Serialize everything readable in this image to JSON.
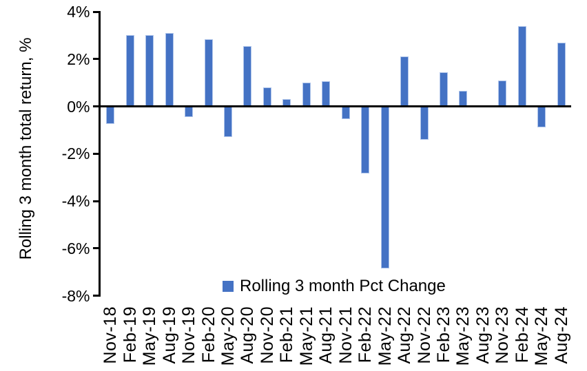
{
  "chart_data": {
    "type": "bar",
    "title": "",
    "xlabel": "",
    "ylabel": "Rolling 3 month total return, %",
    "categories": [
      "Nov-18",
      "Feb-19",
      "May-19",
      "Aug-19",
      "Nov-19",
      "Feb-20",
      "May-20",
      "Aug-20",
      "Nov-20",
      "Feb-21",
      "May-21",
      "Aug-21",
      "Nov-21",
      "Feb-22",
      "May-22",
      "Aug-22",
      "Nov-22",
      "Feb-23",
      "May-23",
      "Aug-23",
      "Nov-23",
      "Feb-24",
      "May-24",
      "Aug-24"
    ],
    "series": [
      {
        "name": "Rolling 3 month Pct Change",
        "values": [
          -0.75,
          3.0,
          3.0,
          3.1,
          -0.45,
          2.85,
          -1.3,
          2.55,
          0.8,
          0.3,
          1.0,
          1.05,
          -0.55,
          -2.85,
          -6.85,
          2.1,
          -1.4,
          1.45,
          0.65,
          0.0,
          1.1,
          3.4,
          -0.9,
          2.7
        ]
      }
    ],
    "ylim": [
      -8,
      4
    ],
    "yticks": [
      {
        "value": 4,
        "label": "4%"
      },
      {
        "value": 2,
        "label": "2%"
      },
      {
        "value": 0,
        "label": "0%"
      },
      {
        "value": -2,
        "label": "-2%"
      },
      {
        "value": -4,
        "label": "-4%"
      },
      {
        "value": -6,
        "label": "-6%"
      },
      {
        "value": -8,
        "label": "-8%"
      }
    ],
    "grid": false,
    "legend_position": "bottom-center",
    "bar_color": "#4472C4",
    "bar_edge_color": "#AEC4EA",
    "axis_color": "#000000"
  }
}
